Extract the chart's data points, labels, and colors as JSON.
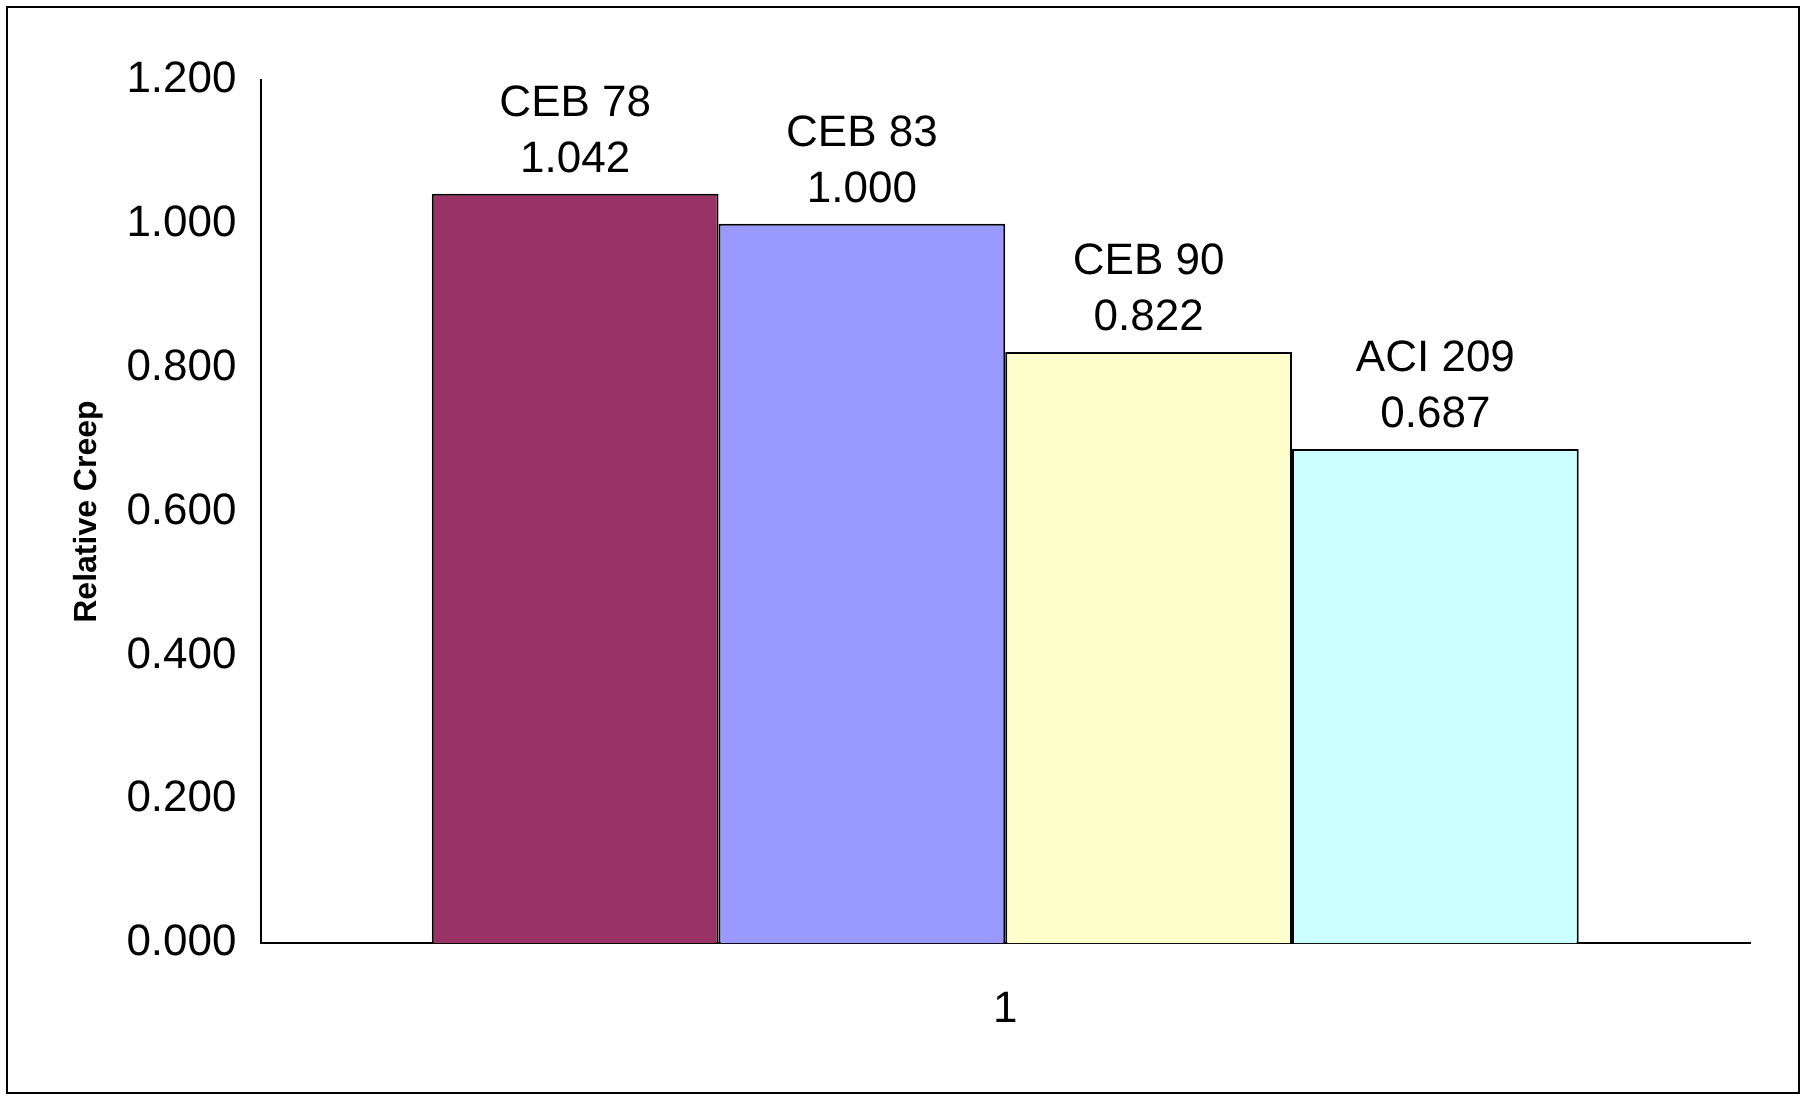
{
  "chart_data": {
    "type": "bar",
    "ylabel": "Relative Creep",
    "categories": [
      "1"
    ],
    "series": [
      {
        "name": "CEB 78",
        "color": "#993366",
        "values": [
          1.042
        ],
        "value_labels": [
          "1.042"
        ]
      },
      {
        "name": "CEB 83",
        "color": "#9999ff",
        "values": [
          1.0
        ],
        "value_labels": [
          "1.000"
        ]
      },
      {
        "name": "CEB 90",
        "color": "#ffffcc",
        "values": [
          0.822
        ],
        "value_labels": [
          "0.822"
        ]
      },
      {
        "name": "ACI 209",
        "color": "#ccffff",
        "values": [
          0.687
        ],
        "value_labels": [
          "0.687"
        ]
      }
    ],
    "ylim": [
      0,
      1.2
    ],
    "yticks": [
      {
        "value": 0,
        "label": "0.000"
      },
      {
        "value": 0.2,
        "label": "0.200"
      },
      {
        "value": 0.4,
        "label": "0.400"
      },
      {
        "value": 0.6,
        "label": "0.600"
      },
      {
        "value": 0.8,
        "label": "0.800"
      },
      {
        "value": 1.0,
        "label": "1.000"
      },
      {
        "value": 1.2,
        "label": "1.200"
      }
    ],
    "grid": false,
    "legend": false
  }
}
